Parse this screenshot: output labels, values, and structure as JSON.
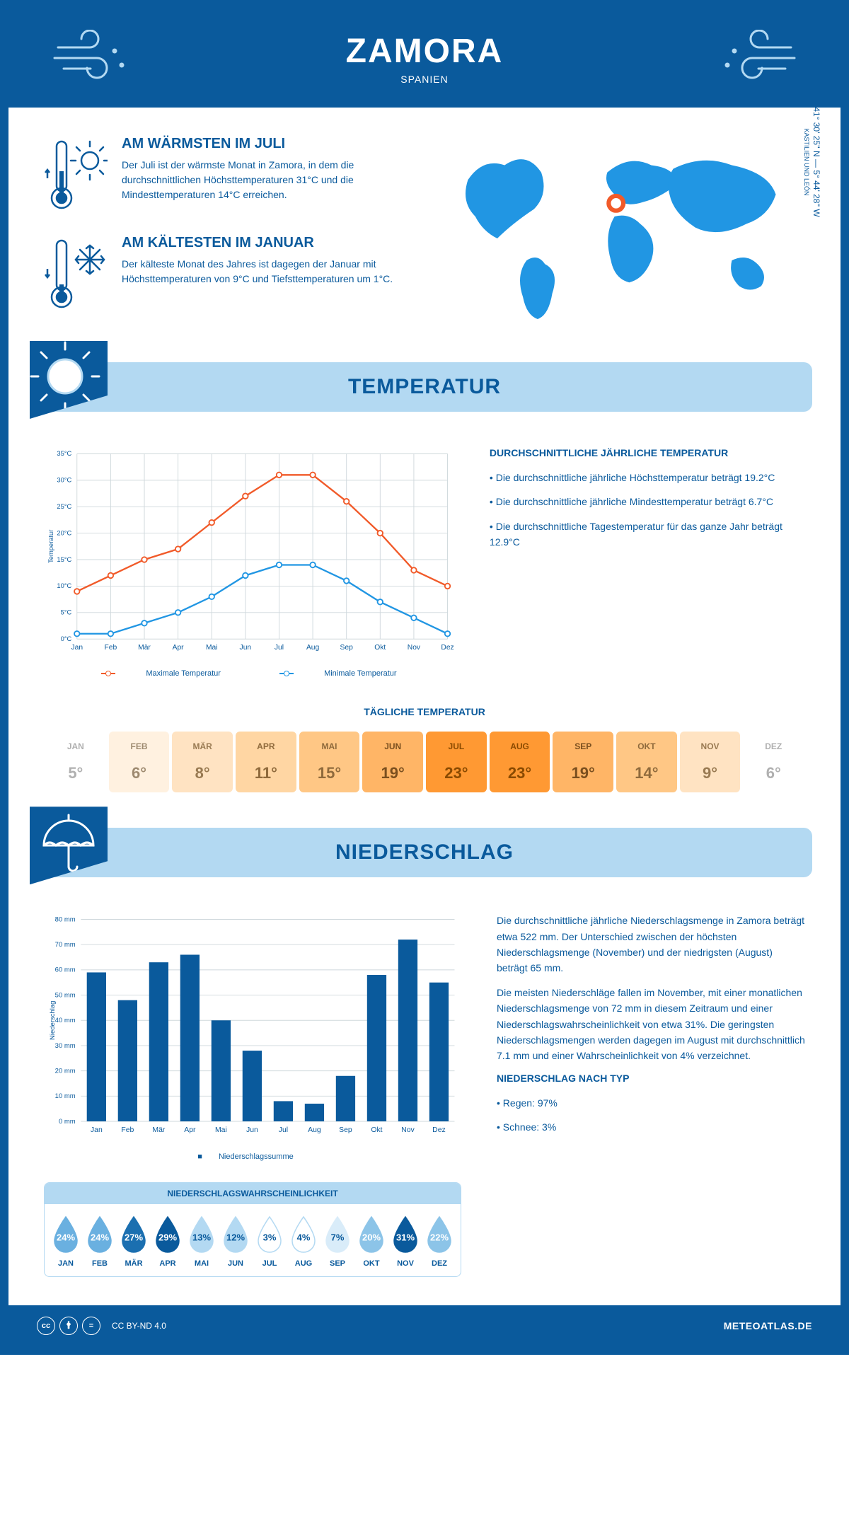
{
  "header": {
    "city": "ZAMORA",
    "country": "SPANIEN",
    "accent_color": "#0a5a9c",
    "light_blue": "#b3d9f2",
    "bright_blue": "#2196e3"
  },
  "intro": {
    "warmest": {
      "title": "AM WÄRMSTEN IM JULI",
      "body": "Der Juli ist der wärmste Monat in Zamora, in dem die durchschnittlichen Höchsttemperaturen 31°C und die Mindesttemperaturen 14°C erreichen."
    },
    "coldest": {
      "title": "AM KÄLTESTEN IM JANUAR",
      "body": "Der kälteste Monat des Jahres ist dagegen der Januar mit Höchsttemperaturen von 9°C und Tiefsttemperaturen um 1°C."
    },
    "coords": "41° 30' 25'' N — 5° 44' 28'' W",
    "region": "KASTILIEN UND LEÓN"
  },
  "temperature": {
    "section_title": "TEMPERATUR",
    "avg_title": "DURCHSCHNITTLICHE JÄHRLICHE TEMPERATUR",
    "bullets": [
      "Die durchschnittliche jährliche Höchsttemperatur beträgt 19.2°C",
      "Die durchschnittliche jährliche Mindesttemperatur beträgt 6.7°C",
      "Die durchschnittliche Tagestemperatur für das ganze Jahr beträgt 12.9°C"
    ],
    "chart": {
      "months": [
        "Jan",
        "Feb",
        "Mär",
        "Apr",
        "Mai",
        "Jun",
        "Jul",
        "Aug",
        "Sep",
        "Okt",
        "Nov",
        "Dez"
      ],
      "max_values": [
        9,
        12,
        15,
        17,
        22,
        27,
        31,
        31,
        26,
        20,
        13,
        10
      ],
      "min_values": [
        1,
        1,
        3,
        5,
        8,
        12,
        14,
        14,
        11,
        7,
        4,
        1
      ],
      "max_color": "#f15a29",
      "min_color": "#2196e3",
      "grid_color": "#cfd8dc",
      "ylim": [
        0,
        35
      ],
      "ytick_step": 5,
      "ylabel": "Temperatur",
      "legend_max": "Maximale Temperatur",
      "legend_min": "Minimale Temperatur"
    },
    "daily_title": "TÄGLICHE TEMPERATUR",
    "daily": [
      {
        "m": "JAN",
        "v": "5°",
        "bg": "#ffffff",
        "fg": "#b0b0b0"
      },
      {
        "m": "FEB",
        "v": "6°",
        "bg": "#fff1e0",
        "fg": "#9e8a70"
      },
      {
        "m": "MÄR",
        "v": "8°",
        "bg": "#ffe3c2",
        "fg": "#997a52"
      },
      {
        "m": "APR",
        "v": "11°",
        "bg": "#ffd6a3",
        "fg": "#8f6a3c"
      },
      {
        "m": "MAI",
        "v": "15°",
        "bg": "#ffc785",
        "fg": "#8f6a3c"
      },
      {
        "m": "JUN",
        "v": "19°",
        "bg": "#ffb566",
        "fg": "#7a4f1f"
      },
      {
        "m": "JUL",
        "v": "23°",
        "bg": "#ff9933",
        "fg": "#8a4a00"
      },
      {
        "m": "AUG",
        "v": "23°",
        "bg": "#ff9933",
        "fg": "#8a4a00"
      },
      {
        "m": "SEP",
        "v": "19°",
        "bg": "#ffb566",
        "fg": "#7a4f1f"
      },
      {
        "m": "OKT",
        "v": "14°",
        "bg": "#ffc785",
        "fg": "#8f6a3c"
      },
      {
        "m": "NOV",
        "v": "9°",
        "bg": "#ffe3c2",
        "fg": "#997a52"
      },
      {
        "m": "DEZ",
        "v": "6°",
        "bg": "#ffffff",
        "fg": "#b0b0b0"
      }
    ]
  },
  "precip": {
    "section_title": "NIEDERSCHLAG",
    "para1": "Die durchschnittliche jährliche Niederschlagsmenge in Zamora beträgt etwa 522 mm. Der Unterschied zwischen der höchsten Niederschlagsmenge (November) und der niedrigsten (August) beträgt 65 mm.",
    "para2": "Die meisten Niederschläge fallen im November, mit einer monatlichen Niederschlagsmenge von 72 mm in diesem Zeitraum und einer Niederschlagswahrscheinlichkeit von etwa 31%. Die geringsten Niederschlagsmengen werden dagegen im August mit durchschnittlich 7.1 mm und einer Wahrscheinlichkeit von 4% verzeichnet.",
    "type_title": "NIEDERSCHLAG NACH TYP",
    "type_bullets": [
      "Regen: 97%",
      "Schnee: 3%"
    ],
    "chart": {
      "months": [
        "Jan",
        "Feb",
        "Mär",
        "Apr",
        "Mai",
        "Jun",
        "Jul",
        "Aug",
        "Sep",
        "Okt",
        "Nov",
        "Dez"
      ],
      "values": [
        59,
        48,
        63,
        66,
        40,
        28,
        8,
        7,
        18,
        58,
        72,
        55
      ],
      "bar_color": "#0a5a9c",
      "grid_color": "#cfd8dc",
      "ylim": [
        0,
        80
      ],
      "ytick_step": 10,
      "ylabel": "Niederschlag",
      "legend": "Niederschlagssumme"
    },
    "prob_title": "NIEDERSCHLAGSWAHRSCHEINLICHKEIT",
    "prob": [
      {
        "m": "JAN",
        "v": "24%",
        "fill": "#6ab0e0",
        "text": "#ffffff"
      },
      {
        "m": "FEB",
        "v": "24%",
        "fill": "#6ab0e0",
        "text": "#ffffff"
      },
      {
        "m": "MÄR",
        "v": "27%",
        "fill": "#1b6fb0",
        "text": "#ffffff"
      },
      {
        "m": "APR",
        "v": "29%",
        "fill": "#0a5a9c",
        "text": "#ffffff"
      },
      {
        "m": "MAI",
        "v": "13%",
        "fill": "#b3d9f2",
        "text": "#0a5a9c"
      },
      {
        "m": "JUN",
        "v": "12%",
        "fill": "#b3d9f2",
        "text": "#0a5a9c"
      },
      {
        "m": "JUL",
        "v": "3%",
        "fill": "#ffffff",
        "text": "#0a5a9c",
        "stroke": "#b3d9f2"
      },
      {
        "m": "AUG",
        "v": "4%",
        "fill": "#ffffff",
        "text": "#0a5a9c",
        "stroke": "#b3d9f2"
      },
      {
        "m": "SEP",
        "v": "7%",
        "fill": "#d9ecf9",
        "text": "#0a5a9c"
      },
      {
        "m": "OKT",
        "v": "20%",
        "fill": "#8cc4e8",
        "text": "#ffffff"
      },
      {
        "m": "NOV",
        "v": "31%",
        "fill": "#0a5a9c",
        "text": "#ffffff"
      },
      {
        "m": "DEZ",
        "v": "22%",
        "fill": "#8cc4e8",
        "text": "#ffffff"
      }
    ]
  },
  "footer": {
    "license": "CC BY-ND 4.0",
    "brand": "METEOATLAS.DE"
  }
}
